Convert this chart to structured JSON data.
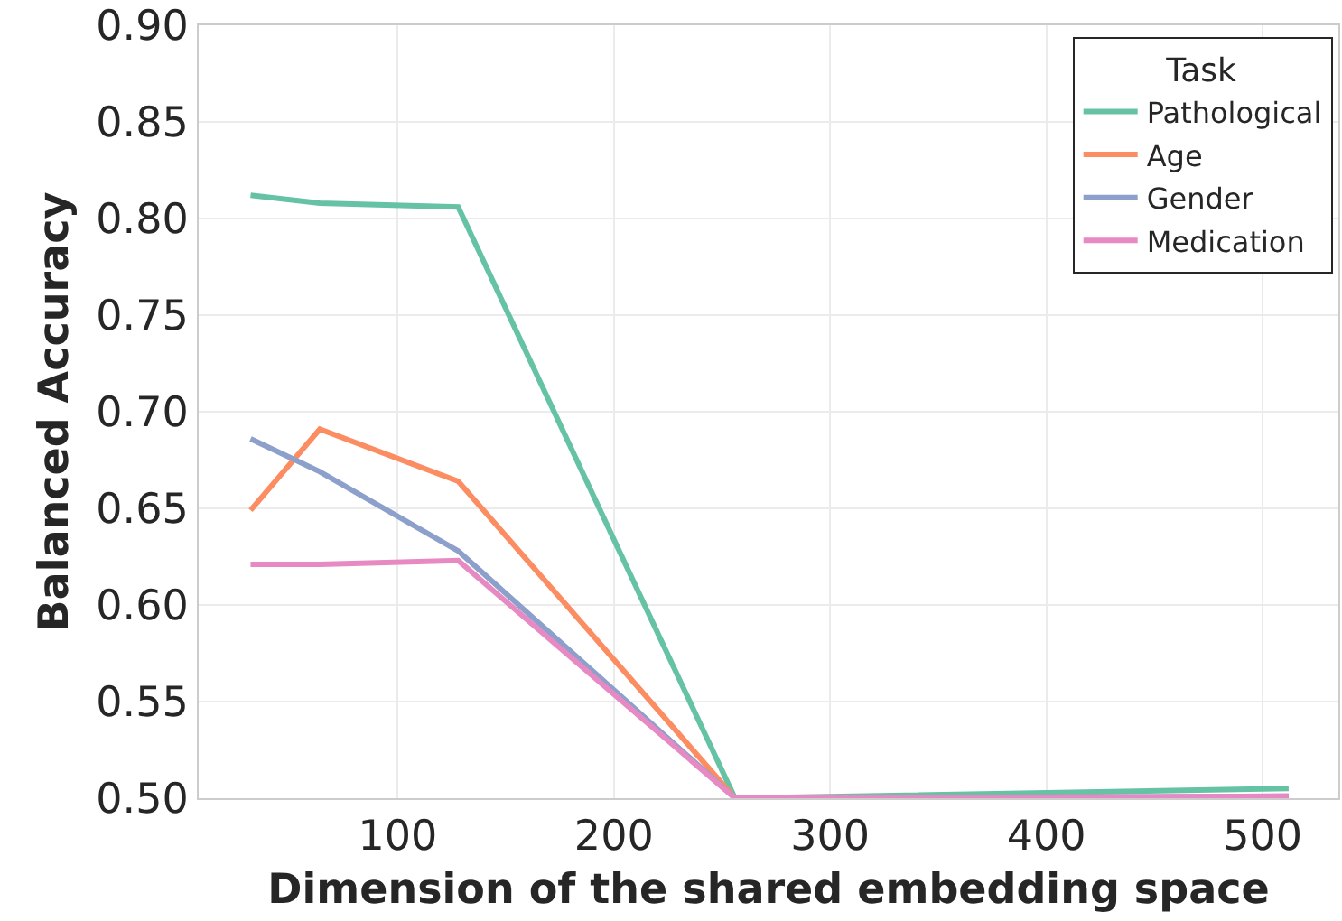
{
  "chart_data": {
    "type": "line",
    "xlabel": "Dimension of the shared embedding space",
    "ylabel": "Balanced Accuracy",
    "legend_title": "Task",
    "x": [
      32,
      64,
      128,
      256,
      512
    ],
    "series": [
      {
        "name": "Pathological",
        "color": "#66c2a5",
        "values": [
          0.812,
          0.808,
          0.806,
          0.5,
          0.505
        ]
      },
      {
        "name": "Age",
        "color": "#fc8d62",
        "values": [
          0.649,
          0.691,
          0.664,
          0.5,
          null
        ]
      },
      {
        "name": "Gender",
        "color": "#8da0cb",
        "values": [
          0.686,
          0.669,
          0.628,
          0.5,
          0.501
        ]
      },
      {
        "name": "Medication",
        "color": "#e78ac3",
        "values": [
          0.621,
          0.621,
          0.623,
          0.5,
          0.501
        ]
      }
    ],
    "xlim": [
      8,
      535
    ],
    "xticks": [
      100,
      200,
      300,
      400,
      500
    ],
    "ylim": [
      0.5,
      0.9
    ],
    "yticks": [
      {
        "value": 0.5,
        "label": "0.50"
      },
      {
        "value": 0.55,
        "label": "0.55"
      },
      {
        "value": 0.6,
        "label": "0.60"
      },
      {
        "value": 0.65,
        "label": "0.65"
      },
      {
        "value": 0.7,
        "label": "0.70"
      },
      {
        "value": 0.75,
        "label": "0.75"
      },
      {
        "value": 0.8,
        "label": "0.80"
      },
      {
        "value": 0.85,
        "label": "0.85"
      },
      {
        "value": 0.9,
        "label": "0.90"
      }
    ],
    "grid": true,
    "legend": "top right",
    "marker": "none",
    "line_style": "solid"
  }
}
